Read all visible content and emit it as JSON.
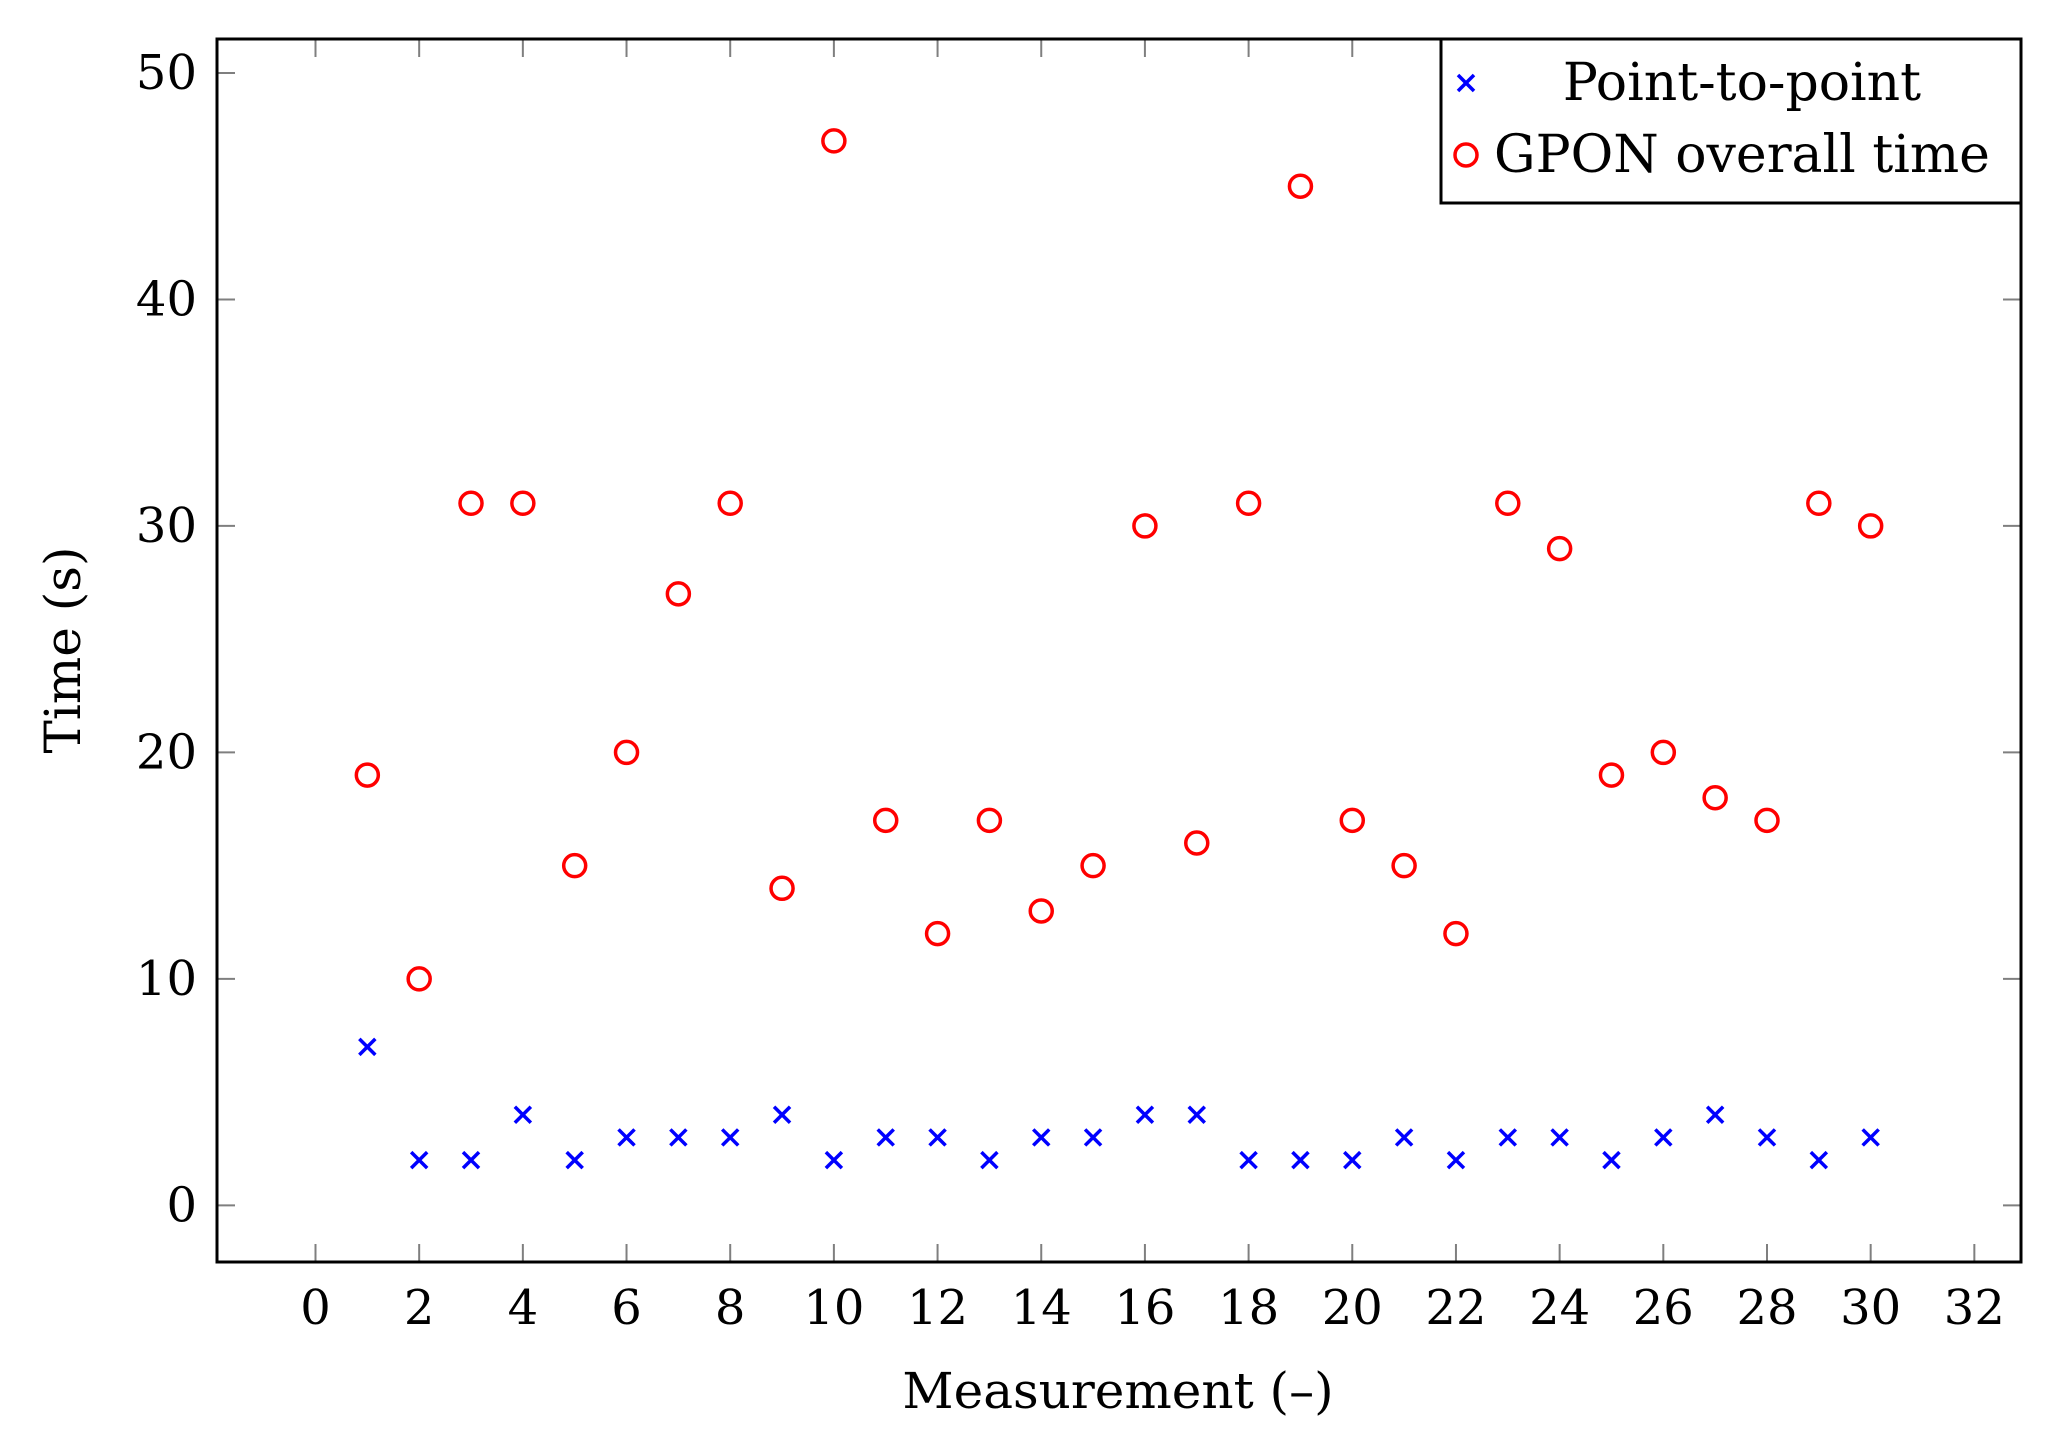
{
  "chart_data": {
    "type": "scatter",
    "xlabel": "Measurement (–)",
    "ylabel": "Time (s)",
    "xlim": [
      -1.9,
      32.9
    ],
    "ylim": [
      -2.5,
      51.5
    ],
    "xticks": [
      0,
      2,
      4,
      6,
      8,
      10,
      12,
      14,
      16,
      18,
      20,
      22,
      24,
      26,
      28,
      30,
      32
    ],
    "yticks": [
      0,
      10,
      20,
      30,
      40,
      50
    ],
    "grid": false,
    "legend_position": "top-right",
    "series": [
      {
        "name": "Point-to-point",
        "marker": "x",
        "color": "#0000ff",
        "x": [
          1,
          2,
          3,
          4,
          5,
          6,
          7,
          8,
          9,
          10,
          11,
          12,
          13,
          14,
          15,
          16,
          17,
          18,
          19,
          20,
          21,
          22,
          23,
          24,
          25,
          26,
          27,
          28,
          29,
          30
        ],
        "y": [
          7,
          2,
          2,
          4,
          2,
          3,
          3,
          3,
          4,
          2,
          3,
          3,
          2,
          3,
          3,
          4,
          4,
          2,
          2,
          2,
          3,
          2,
          3,
          3,
          2,
          3,
          4,
          3,
          2,
          3
        ]
      },
      {
        "name": "GPON overall time",
        "marker": "circle",
        "color": "#ff0000",
        "x": [
          1,
          2,
          3,
          4,
          5,
          6,
          7,
          8,
          9,
          10,
          11,
          12,
          13,
          14,
          15,
          16,
          17,
          18,
          19,
          20,
          21,
          22,
          23,
          24,
          25,
          26,
          27,
          28,
          29,
          30
        ],
        "y": [
          19,
          10,
          31,
          31,
          15,
          20,
          27,
          31,
          14,
          47,
          17,
          12,
          17,
          13,
          15,
          30,
          16,
          31,
          45,
          17,
          15,
          12,
          31,
          29,
          19,
          20,
          18,
          17,
          31,
          30
        ]
      }
    ]
  }
}
